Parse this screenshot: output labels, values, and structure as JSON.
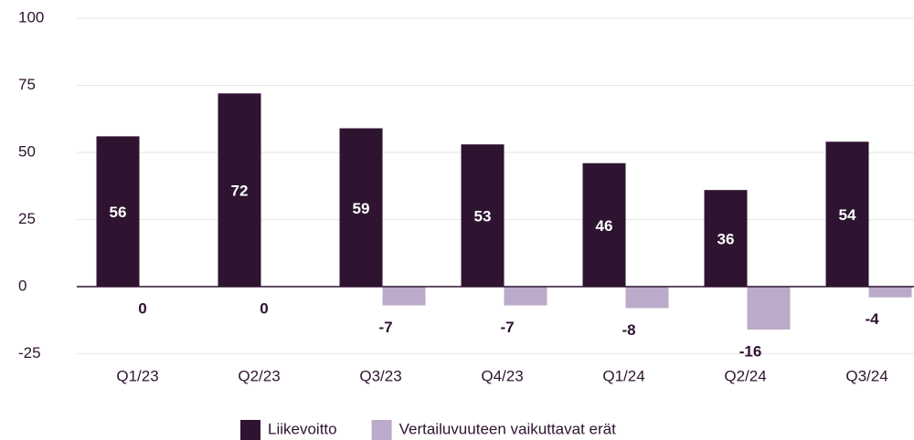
{
  "chart_data": {
    "type": "bar",
    "categories": [
      "Q1/23",
      "Q2/23",
      "Q3/23",
      "Q4/23",
      "Q1/24",
      "Q2/24",
      "Q3/24"
    ],
    "series": [
      {
        "name": "Liikevoitto",
        "color": "#2e1430",
        "values": [
          56,
          72,
          59,
          53,
          46,
          36,
          54
        ]
      },
      {
        "name": "Vertailuvuuteen vaikuttavat erät",
        "color": "#bbaac9",
        "values": [
          0,
          0,
          -7,
          -7,
          -8,
          -16,
          -4
        ]
      }
    ],
    "ylim": [
      -25,
      100
    ],
    "yticks": [
      -25,
      0,
      25,
      50,
      75,
      100
    ],
    "grid": true,
    "legend": "bottom"
  }
}
